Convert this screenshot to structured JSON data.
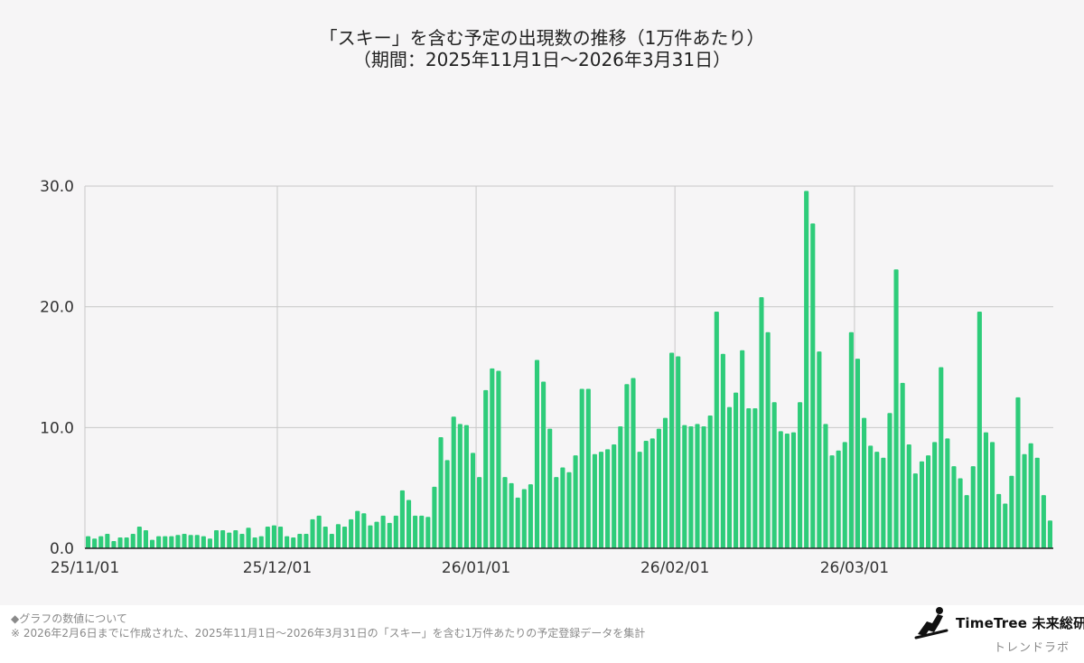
{
  "chart_data": {
    "type": "bar",
    "title_line1": "「スキー」を含む予定の出現数の推移（1万件あたり）",
    "title_line2": "（期間：2025年11月1日〜2026年3月31日）",
    "xlabel": "",
    "ylabel": "",
    "ylim": [
      0,
      30
    ],
    "yticks": [
      "0.0",
      "10.0",
      "20.0",
      "30.0"
    ],
    "ytick_values": [
      0,
      10,
      20,
      30
    ],
    "bar_color": "#2ecc7a",
    "xtick_labels": [
      {
        "label": "25/11/01",
        "index": 0
      },
      {
        "label": "25/12/01",
        "index": 30
      },
      {
        "label": "26/01/01",
        "index": 61
      },
      {
        "label": "26/02/01",
        "index": 92
      },
      {
        "label": "26/03/01",
        "index": 120
      }
    ],
    "series": [
      {
        "name": "出現数（1万件あたり）",
        "values": [
          1.0,
          0.8,
          1.0,
          1.2,
          0.6,
          0.9,
          0.9,
          1.2,
          1.8,
          1.5,
          0.7,
          1.0,
          1.0,
          1.0,
          1.1,
          1.2,
          1.1,
          1.1,
          1.0,
          0.8,
          1.5,
          1.5,
          1.3,
          1.5,
          1.2,
          1.7,
          0.9,
          1.0,
          1.8,
          1.9,
          1.8,
          1.0,
          0.9,
          1.2,
          1.2,
          2.4,
          2.7,
          1.8,
          1.2,
          2.0,
          1.8,
          2.4,
          3.1,
          2.9,
          1.9,
          2.2,
          2.7,
          2.1,
          2.7,
          4.8,
          4.0,
          2.7,
          2.7,
          2.6,
          5.1,
          9.2,
          7.3,
          10.9,
          10.3,
          10.2,
          7.9,
          5.9,
          13.1,
          14.9,
          14.7,
          5.9,
          5.4,
          4.2,
          4.9,
          5.3,
          15.6,
          13.8,
          9.9,
          5.9,
          6.7,
          6.3,
          7.7,
          13.2,
          13.2,
          7.8,
          8.0,
          8.2,
          8.6,
          10.1,
          13.6,
          14.1,
          8.0,
          8.9,
          9.1,
          9.9,
          10.8,
          16.2,
          15.9,
          10.2,
          10.1,
          10.3,
          10.1,
          11.0,
          19.6,
          16.1,
          11.7,
          12.9,
          16.4,
          11.6,
          11.6,
          20.8,
          17.9,
          12.1,
          9.7,
          9.5,
          9.6,
          12.1,
          29.6,
          26.9,
          16.3,
          10.3,
          7.7,
          8.1,
          8.8,
          17.9,
          15.7,
          10.8,
          8.5,
          8.0,
          7.5,
          11.2,
          23.1,
          13.7,
          8.6,
          6.2,
          7.2,
          7.7,
          8.8,
          15.0,
          9.1,
          6.8,
          5.8,
          4.4,
          6.8,
          19.6,
          9.6,
          8.8,
          4.5,
          3.7,
          6.0,
          12.5,
          7.8,
          8.7,
          7.5,
          4.4,
          2.3
        ]
      }
    ]
  },
  "notes": {
    "line1": "◆グラフの数値について",
    "line2": "※ 2026年2月6日までに作成された、2025年11月1日〜2026年3月31日の「スキー」を含む1万件あたりの予定登録データを集計"
  },
  "brand": {
    "name": "TimeTree 未来総研",
    "sub": "トレンドラボ"
  }
}
